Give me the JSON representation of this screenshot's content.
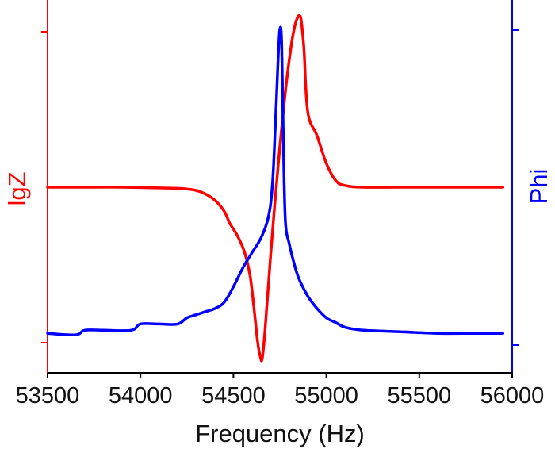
{
  "chart_data": {
    "type": "line",
    "title": "",
    "xlabel": "Frequency (Hz)",
    "ylabel_left": "lgZ",
    "ylabel_right": "Phi",
    "xlim": [
      53500,
      56000
    ],
    "xticks": [
      53500,
      54000,
      54500,
      55000,
      55500,
      56000
    ],
    "xtick_labels": [
      "53500",
      "54000",
      "54500",
      "55000",
      "55500",
      "56000"
    ],
    "y_tick_labels_shown": false,
    "grid": false,
    "legend": "none",
    "series": [
      {
        "name": "lgZ",
        "axis": "left",
        "color": "#ff0000",
        "x": [
          53500,
          53700,
          53900,
          54100,
          54250,
          54330,
          54400,
          54450,
          54480,
          54520,
          54560,
          54590,
          54610,
          54630,
          54645,
          54655,
          54670,
          54700,
          54740,
          54780,
          54810,
          54830,
          54845,
          54855,
          54865,
          54880,
          54900,
          54950,
          55000,
          55050,
          55100,
          55200,
          55400,
          55700,
          55950
        ],
        "y": [
          0.5,
          0.5,
          0.5,
          0.498,
          0.495,
          0.485,
          0.462,
          0.43,
          0.395,
          0.36,
          0.31,
          0.24,
          0.15,
          0.05,
          0.005,
          0.0,
          0.08,
          0.3,
          0.56,
          0.78,
          0.91,
          0.97,
          0.995,
          1.0,
          0.985,
          0.9,
          0.72,
          0.65,
          0.57,
          0.52,
          0.505,
          0.5,
          0.5,
          0.5,
          0.5
        ]
      },
      {
        "name": "Phi",
        "axis": "right",
        "color": "#0000ff",
        "x": [
          53500,
          53650,
          53700,
          53800,
          53950,
          54000,
          54100,
          54200,
          54250,
          54300,
          54350,
          54400,
          54450,
          54500,
          54550,
          54600,
          54650,
          54690,
          54710,
          54725,
          54740,
          54750,
          54760,
          54770,
          54780,
          54800,
          54820,
          54850,
          54900,
          54950,
          55000,
          55050,
          55100,
          55200,
          55400,
          55600,
          55800,
          55950
        ],
        "y": [
          0.02,
          0.015,
          0.03,
          0.03,
          0.03,
          0.05,
          0.05,
          0.05,
          0.07,
          0.08,
          0.09,
          0.1,
          0.12,
          0.17,
          0.23,
          0.28,
          0.33,
          0.4,
          0.5,
          0.68,
          0.9,
          1.0,
          0.95,
          0.6,
          0.38,
          0.31,
          0.26,
          0.2,
          0.14,
          0.1,
          0.07,
          0.055,
          0.04,
          0.03,
          0.025,
          0.02,
          0.02,
          0.02
        ]
      }
    ]
  }
}
